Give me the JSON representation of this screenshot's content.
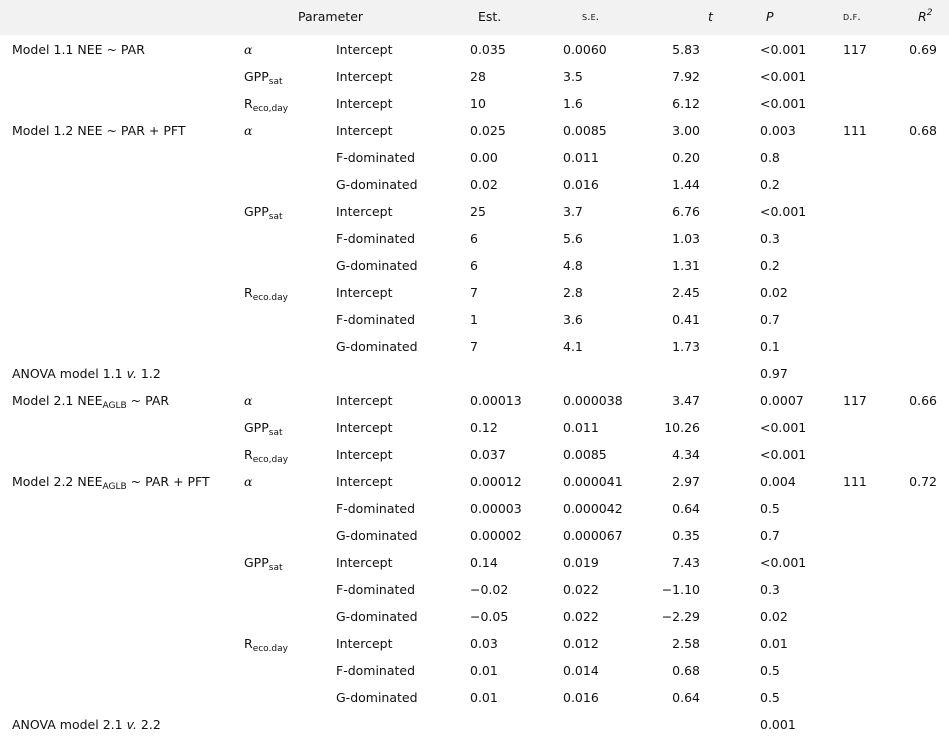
{
  "header": {
    "parameter": "Parameter",
    "est": "Est.",
    "se": "s.e.",
    "t": "t",
    "p": "P",
    "df": "d.f.",
    "r2": {
      "base": "R",
      "sup": "2"
    }
  },
  "sections": [
    {
      "model": {
        "pre": "Model 1.1 NEE ~ PAR"
      },
      "df": "117",
      "r2": "0.69",
      "params": [
        {
          "name": {
            "base": "α"
          },
          "rows": [
            {
              "term": "Intercept",
              "est": "0.035",
              "se": "0.0060",
              "t": "5.83",
              "p": "<0.001"
            }
          ]
        },
        {
          "name": {
            "base": "GPP",
            "sub": "sat"
          },
          "rows": [
            {
              "term": "Intercept",
              "est": "28",
              "se": "3.5",
              "t": "7.92",
              "p": "<0.001"
            }
          ]
        },
        {
          "name": {
            "base": "R",
            "sub": "eco,day"
          },
          "rows": [
            {
              "term": "Intercept",
              "est": "10",
              "se": "1.6",
              "t": "6.12",
              "p": "<0.001"
            }
          ]
        }
      ]
    },
    {
      "model": {
        "pre": "Model 1.2 NEE ~ PAR + PFT"
      },
      "df": "111",
      "r2": "0.68",
      "params": [
        {
          "name": {
            "base": "α"
          },
          "rows": [
            {
              "term": "Intercept",
              "est": "0.025",
              "se": "0.0085",
              "t": "3.00",
              "p": "0.003"
            },
            {
              "term": "F-dominated",
              "est": "0.00",
              "se": "0.011",
              "t": "0.20",
              "p": "0.8"
            },
            {
              "term": "G-dominated",
              "est": "0.02",
              "se": "0.016",
              "t": "1.44",
              "p": "0.2"
            }
          ]
        },
        {
          "name": {
            "base": "GPP",
            "sub": "sat"
          },
          "rows": [
            {
              "term": "Intercept",
              "est": "25",
              "se": "3.7",
              "t": "6.76",
              "p": "<0.001"
            },
            {
              "term": "F-dominated",
              "est": "6",
              "se": "5.6",
              "t": "1.03",
              "p": "0.3"
            },
            {
              "term": "G-dominated",
              "est": "6",
              "se": "4.8",
              "t": "1.31",
              "p": "0.2"
            }
          ]
        },
        {
          "name": {
            "base": "R",
            "sub": "eco.day"
          },
          "rows": [
            {
              "term": "Intercept",
              "est": "7",
              "se": "2.8",
              "t": "2.45",
              "p": "0.02"
            },
            {
              "term": "F-dominated",
              "est": "1",
              "se": "3.6",
              "t": "0.41",
              "p": "0.7"
            },
            {
              "term": "G-dominated",
              "est": "7",
              "se": "4.1",
              "t": "1.73",
              "p": "0.1"
            }
          ]
        }
      ]
    },
    {
      "anova": {
        "pre": "ANOVA model 1.1",
        "em": "v.",
        "post": "1.2"
      },
      "p": "0.97"
    },
    {
      "model": {
        "pre": "Model 2.1 NEE",
        "sub": "AGLB",
        "post": "~ PAR"
      },
      "df": "117",
      "r2": "0.66",
      "params": [
        {
          "name": {
            "base": "α"
          },
          "rows": [
            {
              "term": "Intercept",
              "est": "0.00013",
              "se": "0.000038",
              "t": "3.47",
              "p": "0.0007"
            }
          ]
        },
        {
          "name": {
            "base": "GPP",
            "sub": "sat"
          },
          "rows": [
            {
              "term": "Intercept",
              "est": "0.12",
              "se": "0.011",
              "t": "10.26",
              "p": "<0.001"
            }
          ]
        },
        {
          "name": {
            "base": "R",
            "sub": "eco,day"
          },
          "rows": [
            {
              "term": "Intercept",
              "est": "0.037",
              "se": "0.0085",
              "t": "4.34",
              "p": "<0.001"
            }
          ]
        }
      ]
    },
    {
      "model": {
        "pre": "Model 2.2 NEE",
        "sub": "AGLB",
        "post": "~ PAR + PFT"
      },
      "df": "111",
      "r2": "0.72",
      "params": [
        {
          "name": {
            "base": "α"
          },
          "rows": [
            {
              "term": "Intercept",
              "est": "0.00012",
              "se": "0.000041",
              "t": "2.97",
              "p": "0.004"
            },
            {
              "term": "F-dominated",
              "est": "0.00003",
              "se": "0.000042",
              "t": "0.64",
              "p": "0.5"
            },
            {
              "term": "G-dominated",
              "est": "0.00002",
              "se": "0.000067",
              "t": "0.35",
              "p": "0.7"
            }
          ]
        },
        {
          "name": {
            "base": "GPP",
            "sub": "sat"
          },
          "rows": [
            {
              "term": "Intercept",
              "est": "0.14",
              "se": "0.019",
              "t": "7.43",
              "p": "<0.001"
            },
            {
              "term": "F-dominated",
              "est": "−0.02",
              "se": "0.022",
              "t": "−1.10",
              "p": "0.3"
            },
            {
              "term": "G-dominated",
              "est": "−0.05",
              "se": "0.022",
              "t": "−2.29",
              "p": "0.02"
            }
          ]
        },
        {
          "name": {
            "base": "R",
            "sub": "eco.day"
          },
          "rows": [
            {
              "term": "Intercept",
              "est": "0.03",
              "se": "0.012",
              "t": "2.58",
              "p": "0.01"
            },
            {
              "term": "F-dominated",
              "est": "0.01",
              "se": "0.014",
              "t": "0.68",
              "p": "0.5"
            },
            {
              "term": "G-dominated",
              "est": "0.01",
              "se": "0.016",
              "t": "0.64",
              "p": "0.5"
            }
          ]
        }
      ]
    },
    {
      "anova": {
        "pre": "ANOVA model 2.1",
        "em": "v.",
        "post": "2.2"
      },
      "p": "0.001"
    }
  ]
}
